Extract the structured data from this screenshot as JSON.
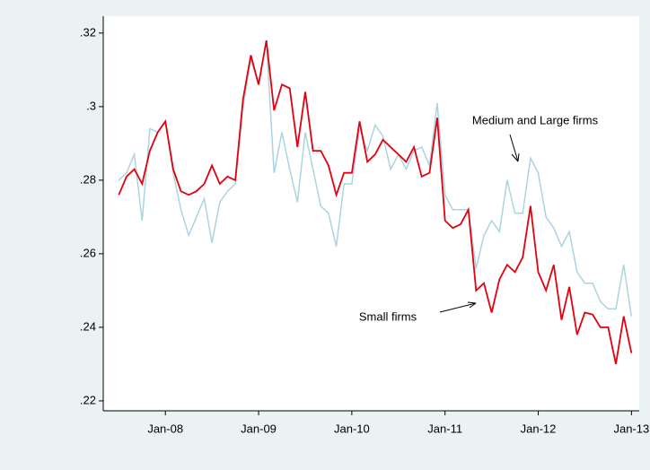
{
  "chart_data": {
    "type": "line",
    "x": [
      "2007-07",
      "2007-08",
      "2007-09",
      "2007-10",
      "2007-11",
      "2007-12",
      "2008-01",
      "2008-02",
      "2008-03",
      "2008-04",
      "2008-05",
      "2008-06",
      "2008-07",
      "2008-08",
      "2008-09",
      "2008-10",
      "2008-11",
      "2008-12",
      "2009-01",
      "2009-02",
      "2009-03",
      "2009-04",
      "2009-05",
      "2009-06",
      "2009-07",
      "2009-08",
      "2009-09",
      "2009-10",
      "2009-11",
      "2009-12",
      "2010-01",
      "2010-02",
      "2010-03",
      "2010-04",
      "2010-05",
      "2010-06",
      "2010-07",
      "2010-08",
      "2010-09",
      "2010-10",
      "2010-11",
      "2010-12",
      "2011-01",
      "2011-02",
      "2011-03",
      "2011-04",
      "2011-05",
      "2011-06",
      "2011-07",
      "2011-08",
      "2011-09",
      "2011-10",
      "2011-11",
      "2011-12",
      "2012-01",
      "2012-02",
      "2012-03",
      "2012-04",
      "2012-05",
      "2012-06",
      "2012-07",
      "2012-08",
      "2012-09",
      "2012-10",
      "2012-11",
      "2012-12",
      "2013-01"
    ],
    "series": [
      {
        "name": "Medium and Large firms",
        "color": "#aad4df",
        "values": [
          0.28,
          0.282,
          0.287,
          0.269,
          0.294,
          0.293,
          0.296,
          0.282,
          0.272,
          0.265,
          0.27,
          0.275,
          0.263,
          0.274,
          0.277,
          0.279,
          0.3,
          0.313,
          0.306,
          0.318,
          0.282,
          0.293,
          0.283,
          0.274,
          0.293,
          0.283,
          0.273,
          0.271,
          0.262,
          0.279,
          0.279,
          0.294,
          0.288,
          0.295,
          0.292,
          0.283,
          0.287,
          0.283,
          0.288,
          0.289,
          0.284,
          0.301,
          0.276,
          0.272,
          0.272,
          0.272,
          0.256,
          0.265,
          0.269,
          0.266,
          0.28,
          0.271,
          0.271,
          0.286,
          0.282,
          0.27,
          0.267,
          0.262,
          0.266,
          0.255,
          0.252,
          0.252,
          0.247,
          0.245,
          0.245,
          0.257,
          0.243
        ]
      },
      {
        "name": "Small firms",
        "color": "#e3000f",
        "values": [
          0.276,
          0.281,
          0.283,
          0.279,
          0.288,
          0.293,
          0.296,
          0.283,
          0.277,
          0.276,
          0.277,
          0.279,
          0.284,
          0.279,
          0.281,
          0.28,
          0.302,
          0.314,
          0.306,
          0.318,
          0.299,
          0.306,
          0.305,
          0.289,
          0.304,
          0.288,
          0.288,
          0.284,
          0.276,
          0.282,
          0.282,
          0.296,
          0.285,
          0.287,
          0.291,
          0.289,
          0.287,
          0.285,
          0.289,
          0.281,
          0.282,
          0.297,
          0.269,
          0.267,
          0.268,
          0.272,
          0.25,
          0.252,
          0.244,
          0.253,
          0.257,
          0.255,
          0.259,
          0.273,
          0.255,
          0.25,
          0.257,
          0.242,
          0.251,
          0.238,
          0.244,
          0.2435,
          0.24,
          0.24,
          0.23,
          0.243,
          0.233
        ]
      }
    ],
    "annotations": [
      {
        "text": "Medium and Large firms"
      },
      {
        "text": "Small firms"
      }
    ],
    "xlim": [
      "2007-05",
      "2013-02"
    ],
    "xticks": [
      {
        "value": "2008-01",
        "label": "Jan-08"
      },
      {
        "value": "2009-01",
        "label": "Jan-09"
      },
      {
        "value": "2010-01",
        "label": "Jan-10"
      },
      {
        "value": "2011-01",
        "label": "Jan-11"
      },
      {
        "value": "2012-01",
        "label": "Jan-12"
      },
      {
        "value": "2013-01",
        "label": "Jan-13"
      }
    ],
    "ylim": [
      0.2173,
      0.3246
    ],
    "yticks": [
      {
        "value": 0.22,
        "label": ".22"
      },
      {
        "value": 0.24,
        "label": ".24"
      },
      {
        "value": 0.26,
        "label": ".26"
      },
      {
        "value": 0.28,
        "label": ".28"
      },
      {
        "value": 0.3,
        "label": ".3"
      },
      {
        "value": 0.32,
        "label": ".32"
      }
    ],
    "grid": false
  }
}
